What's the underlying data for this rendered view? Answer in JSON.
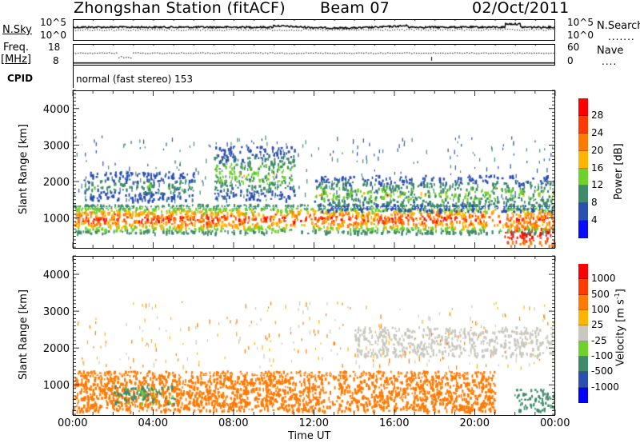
{
  "header": {
    "station_title": "Zhongshan Station (fitACF)",
    "beam_label": "Beam 07",
    "date": "02/Oct/2011"
  },
  "strips": {
    "nsky": {
      "label": "N.Sky",
      "ticks": [
        "10^5",
        "10^0"
      ]
    },
    "nsearch": {
      "label": "N.Search",
      "ticks": [
        "10^5",
        "10^0"
      ],
      "line_style": "......."
    },
    "freq": {
      "label_line1": "Freq.",
      "label_line2": "[MHz]",
      "ticks": [
        "18",
        "8"
      ]
    },
    "nave": {
      "label": "Nave",
      "ticks": [
        "60",
        "0"
      ],
      "line_style": "...."
    },
    "cpid": {
      "label": "CPID",
      "value": "normal (fast stereo) 153"
    }
  },
  "chart_data": [
    {
      "type": "heatmap",
      "title": "Power",
      "xlabel": "Time UT",
      "ylabel": "Slant Range [km]",
      "xlim": [
        0,
        24
      ],
      "ylim": [
        180,
        4500
      ],
      "x_ticks": [
        "00:00",
        "04:00",
        "08:00",
        "12:00",
        "16:00",
        "20:00",
        "00:00"
      ],
      "y_ticks": [
        "1000",
        "2000",
        "3000",
        "4000"
      ],
      "colorbar": {
        "label": "Power [dB]",
        "ticks": [
          "28",
          "24",
          "20",
          "16",
          "12",
          "8",
          "4"
        ],
        "levels": [
          0,
          4,
          8,
          12,
          16,
          20,
          24,
          28,
          32
        ],
        "colors": [
          "#0a0aff",
          "#2a4fb0",
          "#3f8a6a",
          "#6fd12c",
          "#ffb400",
          "#ff7a00",
          "#ff3a00",
          "#ff0000"
        ]
      },
      "regions": [
        {
          "t": [
            0,
            24
          ],
          "range_km": [
            600,
            1400
          ],
          "power_db": [
            8,
            30
          ],
          "desc": "main band"
        },
        {
          "t": [
            0.5,
            6
          ],
          "range_km": [
            1500,
            2300
          ],
          "power_db": [
            4,
            12
          ],
          "desc": "weak upper patch"
        },
        {
          "t": [
            7,
            11
          ],
          "range_km": [
            1500,
            3000
          ],
          "power_db": [
            4,
            16
          ],
          "desc": "patchy high-range echoes"
        },
        {
          "t": [
            12,
            24
          ],
          "range_km": [
            1200,
            2200
          ],
          "power_db": [
            4,
            16
          ],
          "desc": "upper band"
        },
        {
          "t": [
            21.5,
            24
          ],
          "range_km": [
            250,
            900
          ],
          "power_db": [
            20,
            32
          ],
          "desc": "strong near-range echoes"
        }
      ]
    },
    {
      "type": "heatmap",
      "title": "Velocity",
      "xlabel": "Time UT",
      "ylabel": "Slant Range [km]",
      "xlim": [
        0,
        24
      ],
      "ylim": [
        180,
        4500
      ],
      "x_ticks": [
        "00:00",
        "04:00",
        "08:00",
        "12:00",
        "16:00",
        "20:00",
        "00:00"
      ],
      "y_ticks": [
        "1000",
        "2000",
        "3000",
        "4000"
      ],
      "colorbar": {
        "label": "Velocity [m s^-1]",
        "ticks": [
          "1000",
          "500",
          "100",
          "25",
          "-25",
          "-100",
          "-500",
          "-1000"
        ],
        "colors": [
          "#0000ff",
          "#2a4fb0",
          "#3f8a6a",
          "#6fd12c",
          "#c8c8be",
          "#ffb400",
          "#ff7a00",
          "#ff3a00",
          "#ff0000"
        ]
      },
      "regions": [
        {
          "t": [
            0,
            21
          ],
          "range_km": [
            300,
            1400
          ],
          "velocity_ms": [
            -500,
            -100
          ],
          "desc": "predominantly negative (orange)"
        },
        {
          "t": [
            2,
            5
          ],
          "range_km": [
            500,
            1000
          ],
          "velocity_ms": [
            25,
            500
          ],
          "desc": "mixed green/teal"
        },
        {
          "t": [
            22,
            24
          ],
          "range_km": [
            300,
            900
          ],
          "velocity_ms": [
            100,
            500
          ],
          "desc": "teal near-range patch"
        },
        {
          "t": [
            14,
            24
          ],
          "range_km": [
            1800,
            2600
          ],
          "velocity_ms": [
            -25,
            25
          ],
          "desc": "grey low-velocity echoes"
        }
      ]
    }
  ],
  "axes": {
    "xlabel": "Time UT",
    "ylabel": "Slant Range [km]"
  }
}
